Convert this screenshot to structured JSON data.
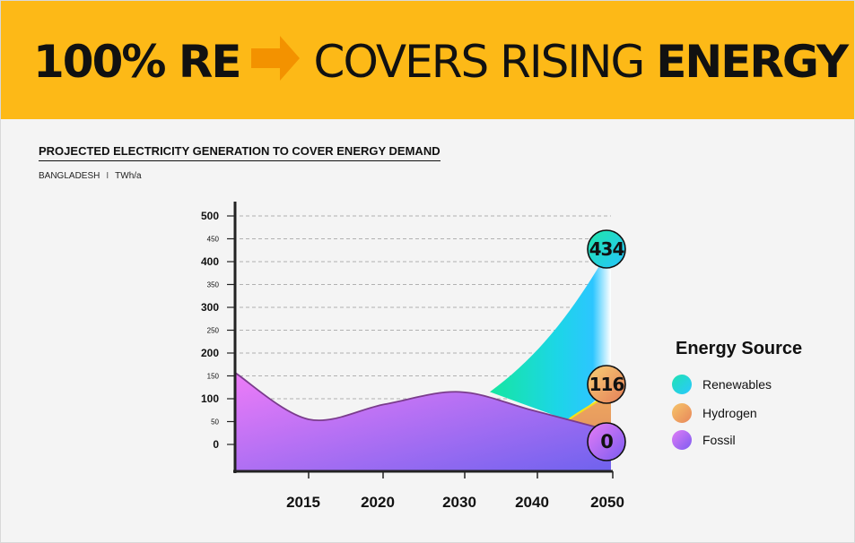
{
  "header": {
    "part1": "100% RE",
    "part2": "COVERS RISING",
    "part3": "ENERGY DEMAND",
    "arrow_icon": "right-arrow-icon",
    "background_color": "#fdb917",
    "arrow_color": "#f39200"
  },
  "section": {
    "title": "PROJECTED ELECTRICITY GENERATION TO COVER ENERGY DEMAND",
    "country": "BANGLADESH",
    "separator": "I",
    "unit": "TWh/a"
  },
  "legend": {
    "title": "Energy Source",
    "items": [
      {
        "label": "Renewables",
        "color_start": "#1fe2b2",
        "color_end": "#2bc8ff"
      },
      {
        "label": "Hydrogen",
        "color_start": "#f6c56a",
        "color_end": "#e8865a"
      },
      {
        "label": "Fossil",
        "color_start": "#e07cf6",
        "color_end": "#7d5cf0"
      }
    ]
  },
  "chart_data": {
    "type": "area",
    "title": "PROJECTED ELECTRICITY GENERATION TO COVER ENERGY DEMAND",
    "subtitle": "BANGLADESH I TWh/a",
    "x": [
      2010,
      2015,
      2020,
      2030,
      2040,
      2050
    ],
    "x_tick_labels": [
      "2015",
      "2020",
      "2030",
      "2040",
      "2050"
    ],
    "y_ticks": [
      0,
      50,
      100,
      150,
      200,
      250,
      300,
      350,
      400,
      450,
      500
    ],
    "ylim": [
      0,
      500
    ],
    "grid": true,
    "legend_position": "right",
    "series": [
      {
        "name": "Fossil",
        "values": [
          157,
          55,
          88,
          115,
          75,
          0
        ]
      },
      {
        "name": "Hydrogen",
        "values": [
          0,
          0,
          0,
          0,
          0,
          116
        ]
      },
      {
        "name": "Renewables",
        "values": [
          0,
          0,
          0,
          0,
          105,
          434
        ]
      }
    ],
    "end_labels": [
      {
        "series": "Renewables",
        "value": "434"
      },
      {
        "series": "Hydrogen",
        "value": "116"
      },
      {
        "series": "Fossil",
        "value": "0"
      }
    ]
  }
}
